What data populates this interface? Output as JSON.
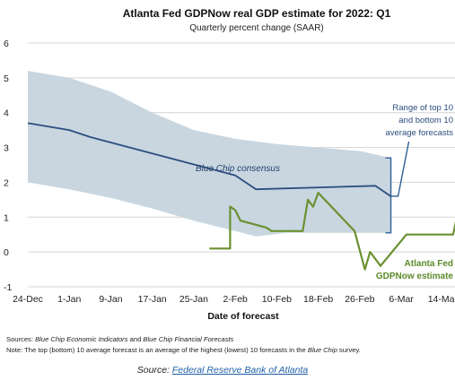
{
  "chart_data": {
    "type": "line",
    "title": "Atlanta Fed GDPNow real GDP estimate for 2022: Q1",
    "subtitle": "Quarterly percent change (SAAR)",
    "xlabel": "Date of forecast",
    "ylabel": "",
    "ylim": [
      -1,
      6
    ],
    "yticks": [
      "-1",
      "0",
      "1",
      "2",
      "3",
      "4",
      "5",
      "6"
    ],
    "xlim": [
      "2021-12-24",
      "2022-03-18"
    ],
    "xticks": [
      {
        "date": "2021-12-24",
        "label": "24-Dec"
      },
      {
        "date": "2022-01-01",
        "label": "1-Jan"
      },
      {
        "date": "2022-01-09",
        "label": "9-Jan"
      },
      {
        "date": "2022-01-17",
        "label": "17-Jan"
      },
      {
        "date": "2022-01-25",
        "label": "25-Jan"
      },
      {
        "date": "2022-02-02",
        "label": "2-Feb"
      },
      {
        "date": "2022-02-10",
        "label": "10-Feb"
      },
      {
        "date": "2022-02-18",
        "label": "18-Feb"
      },
      {
        "date": "2022-02-26",
        "label": "26-Feb"
      },
      {
        "date": "2022-03-06",
        "label": "6-Mar"
      },
      {
        "date": "2022-03-14",
        "label": "14-Mar"
      }
    ],
    "grid": true,
    "range_band": {
      "upper": [
        {
          "x": "2021-12-24",
          "y": 5.2
        },
        {
          "x": "2022-01-01",
          "y": 5.0
        },
        {
          "x": "2022-01-09",
          "y": 4.6
        },
        {
          "x": "2022-01-17",
          "y": 4.0
        },
        {
          "x": "2022-01-25",
          "y": 3.5
        },
        {
          "x": "2022-02-02",
          "y": 3.25
        },
        {
          "x": "2022-02-10",
          "y": 3.1
        },
        {
          "x": "2022-02-18",
          "y": 3.0
        },
        {
          "x": "2022-02-26",
          "y": 2.9
        },
        {
          "x": "2022-03-04",
          "y": 2.7
        }
      ],
      "lower": [
        {
          "x": "2021-12-24",
          "y": 2.0
        },
        {
          "x": "2022-01-01",
          "y": 1.8
        },
        {
          "x": "2022-01-09",
          "y": 1.55
        },
        {
          "x": "2022-01-17",
          "y": 1.25
        },
        {
          "x": "2022-01-25",
          "y": 0.9
        },
        {
          "x": "2022-02-02",
          "y": 0.6
        },
        {
          "x": "2022-02-06",
          "y": 0.45
        },
        {
          "x": "2022-02-12",
          "y": 0.55
        },
        {
          "x": "2022-02-20",
          "y": 0.55
        },
        {
          "x": "2022-02-26",
          "y": 0.55
        },
        {
          "x": "2022-03-04",
          "y": 0.55
        }
      ]
    },
    "series": [
      {
        "name": "Blue Chip consensus",
        "color": "#2b4d7e",
        "points": [
          {
            "x": "2021-12-24",
            "y": 3.7
          },
          {
            "x": "2022-01-01",
            "y": 3.5
          },
          {
            "x": "2022-01-05",
            "y": 3.3
          },
          {
            "x": "2022-02-02",
            "y": 2.2
          },
          {
            "x": "2022-02-06",
            "y": 1.8
          },
          {
            "x": "2022-03-01",
            "y": 1.9
          },
          {
            "x": "2022-03-04",
            "y": 1.6
          }
        ]
      },
      {
        "name": "Atlanta Fed GDPNow estimate",
        "color": "#6b9030",
        "points": [
          {
            "x": "2022-01-28",
            "y": 0.1
          },
          {
            "x": "2022-01-31",
            "y": 0.1
          },
          {
            "x": "2022-02-01",
            "y": 0.1
          },
          {
            "x": "2022-02-01",
            "y": 1.3
          },
          {
            "x": "2022-02-02",
            "y": 1.2
          },
          {
            "x": "2022-02-03",
            "y": 0.9
          },
          {
            "x": "2022-02-08",
            "y": 0.7
          },
          {
            "x": "2022-02-09",
            "y": 0.6
          },
          {
            "x": "2022-02-15",
            "y": 0.6
          },
          {
            "x": "2022-02-16",
            "y": 1.5
          },
          {
            "x": "2022-02-17",
            "y": 1.3
          },
          {
            "x": "2022-02-18",
            "y": 1.7
          },
          {
            "x": "2022-02-25",
            "y": 0.6
          },
          {
            "x": "2022-02-27",
            "y": -0.5
          },
          {
            "x": "2022-02-28",
            "y": 0.0
          },
          {
            "x": "2022-03-02",
            "y": -0.4
          },
          {
            "x": "2022-03-07",
            "y": 0.5
          },
          {
            "x": "2022-03-16",
            "y": 0.5
          },
          {
            "x": "2022-03-17",
            "y": 1.2
          },
          {
            "x": "2022-03-18",
            "y": 1.3
          }
        ]
      }
    ],
    "annotations": {
      "consensus_label": "Blue Chip consensus",
      "range_label_lines": [
        "Range of top 10",
        "and bottom 10",
        "average forecasts"
      ],
      "gdpnow_label_lines": [
        "Atlanta Fed",
        "GDPNow estimate"
      ]
    }
  },
  "notes": {
    "sources_label": "Sources",
    "sources_colon": ": ",
    "sources_italic_1": "Blue Chip Economic Indicators",
    "sources_and": " and ",
    "sources_italic_2": "Blue Chip Financial Forecasts",
    "note_label": "Note",
    "note_text": ": The top (bottom) 10 average forecast is an average of the highest (lowest) 10 forecasts in the ",
    "note_italic": "Blue Chip",
    "note_end": " survey."
  },
  "source_line": {
    "label": "Source: ",
    "link_text": "Federal Reserve Bank of Atlanta"
  },
  "colors": {
    "band": "#c9d6df",
    "consensus": "#2b4d7e",
    "gdpnow": "#6b9030",
    "bracket": "#2e5f96"
  }
}
